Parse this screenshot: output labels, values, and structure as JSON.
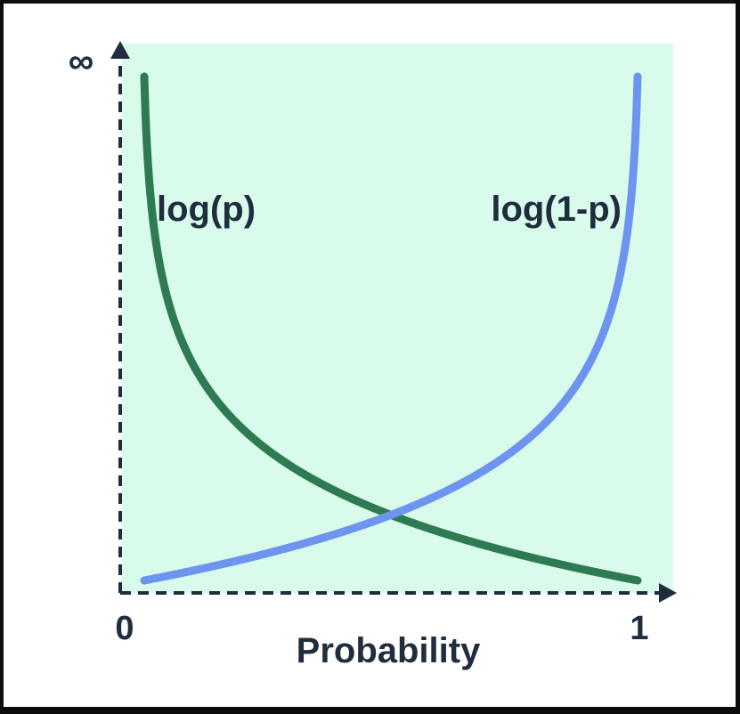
{
  "chart_data": {
    "type": "line",
    "x_axis": {
      "label": "Probability",
      "min_label": "0",
      "max_label": "1",
      "range": [
        0,
        1
      ]
    },
    "y_axis": {
      "top_label": "∞"
    },
    "grid": false,
    "series": [
      {
        "name": "log(p)",
        "function": "neg_log_p",
        "color": "#2e7a53",
        "label_position": "upper-left"
      },
      {
        "name": "log(1-p)",
        "function": "neg_log_one_minus_p",
        "color": "#6d95f0",
        "label_position": "upper-right"
      }
    ],
    "colors": {
      "plot_background": "#d9fbec",
      "axis": "#1f2d3d"
    }
  }
}
